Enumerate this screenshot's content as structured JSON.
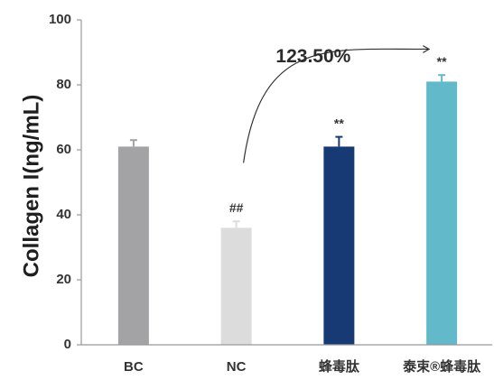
{
  "chart_data": {
    "type": "bar",
    "ylabel": "Collagen I(ng/mL)",
    "ylim": [
      0,
      100
    ],
    "yticks": [
      0,
      20,
      40,
      60,
      80,
      100
    ],
    "grid": false,
    "categories": [
      "BC",
      "NC",
      "蜂毒肽",
      "泰束®蜂毒肽"
    ],
    "values": [
      61,
      36,
      61,
      81
    ],
    "errors": [
      2,
      2,
      3,
      2
    ],
    "colors": [
      "#a3a3a6",
      "#dcdcdc",
      "#173a75",
      "#62b9c9"
    ],
    "significance": [
      "",
      "##",
      "**",
      "**"
    ],
    "annotation": {
      "text": "123.50%",
      "from_category": "NC",
      "to_category": "泰束®蜂毒肽"
    }
  }
}
